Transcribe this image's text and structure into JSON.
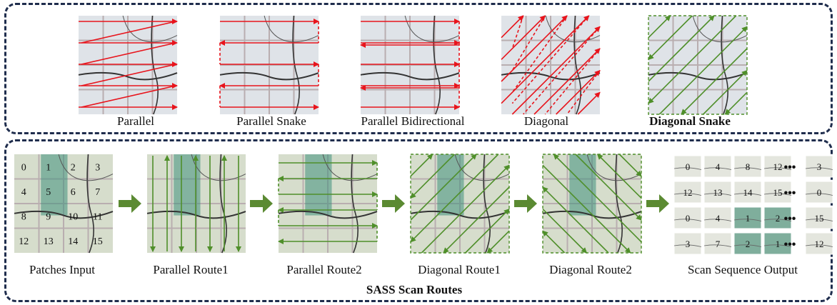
{
  "top_row": {
    "methods": [
      {
        "label": "Parallel",
        "bold": false
      },
      {
        "label": "Parallel Snake",
        "bold": false
      },
      {
        "label": "Parallel Bidirectional",
        "bold": false
      },
      {
        "label": "Diagonal",
        "bold": false
      },
      {
        "label": "Diagonal Snake",
        "bold": true
      }
    ]
  },
  "bottom_row": {
    "title": "SASS Scan Routes",
    "stages": [
      {
        "label": "Patches Input"
      },
      {
        "label": "Parallel Route1"
      },
      {
        "label": "Parallel Route2"
      },
      {
        "label": "Diagonal Route1"
      },
      {
        "label": "Diagonal Route2"
      },
      {
        "label": "Scan Sequence Output"
      }
    ],
    "patch_numbers": [
      "0",
      "1",
      "2",
      "3",
      "4",
      "5",
      "6",
      "7",
      "8",
      "9",
      "10",
      "11",
      "12",
      "13",
      "14",
      "15"
    ],
    "output_rows": [
      [
        "0",
        "4",
        "8",
        "12",
        "3"
      ],
      [
        "12",
        "13",
        "14",
        "15",
        "0"
      ],
      [
        "0",
        "4",
        "1",
        "2",
        "15"
      ],
      [
        "3",
        "7",
        "2",
        "1",
        "12"
      ]
    ],
    "ellipsis": "•••"
  },
  "colors": {
    "red_arrow": "#e8141c",
    "green_arrow": "#4f8f2a",
    "green_block_arrow": "#5b8a32",
    "border": "#1f2d4d"
  }
}
